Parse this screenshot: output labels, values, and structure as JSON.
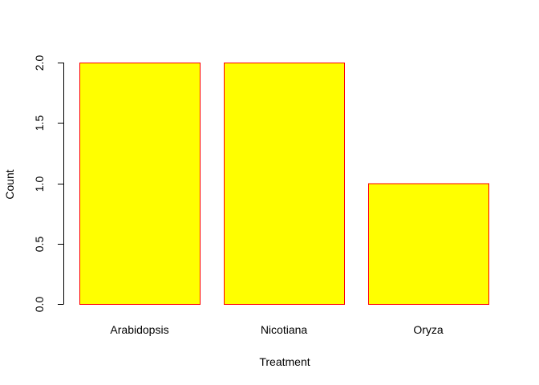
{
  "chart_data": {
    "type": "bar",
    "categories": [
      "Arabidopsis",
      "Nicotiana",
      "Oryza"
    ],
    "values": [
      2,
      2,
      1
    ],
    "title": "",
    "xlabel": "Treatment",
    "ylabel": "Count",
    "ylim": [
      0,
      2
    ],
    "yticks": [
      "0.0",
      "0.5",
      "1.0",
      "1.5",
      "2.0"
    ],
    "grid": false,
    "legend": "none",
    "colors": {
      "bar_fill": "#ffff00",
      "bar_border": "#ff0000",
      "axis": "#000000"
    }
  }
}
